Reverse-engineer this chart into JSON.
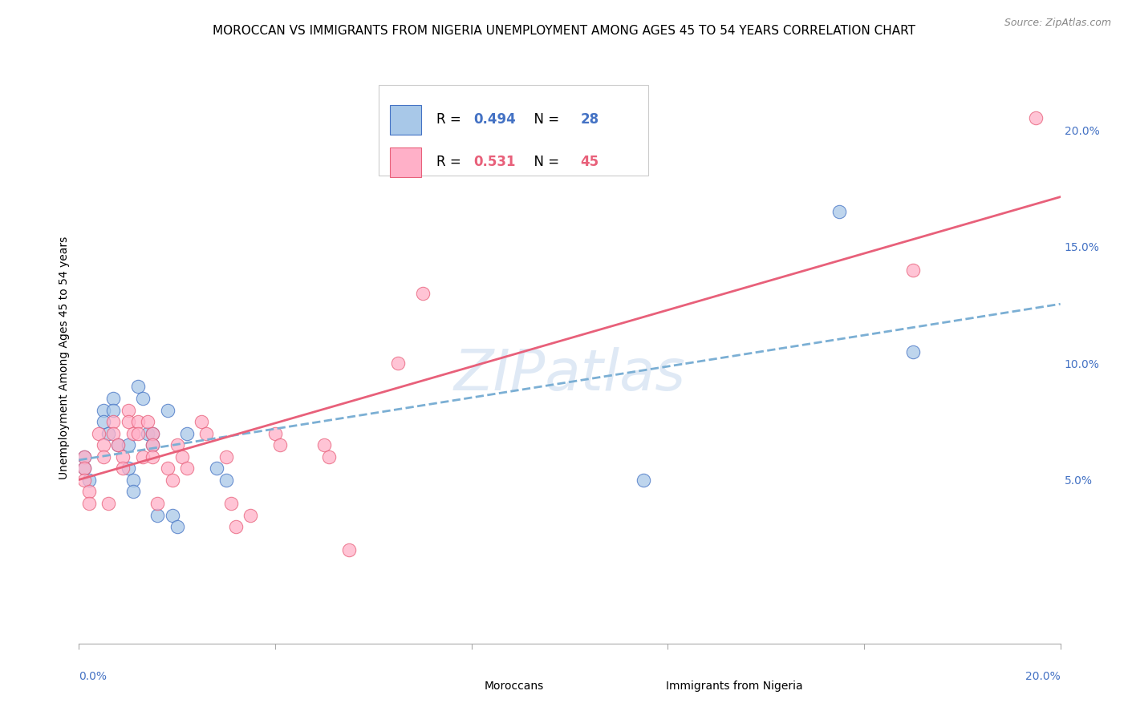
{
  "title": "MOROCCAN VS IMMIGRANTS FROM NIGERIA UNEMPLOYMENT AMONG AGES 45 TO 54 YEARS CORRELATION CHART",
  "source": "Source: ZipAtlas.com",
  "ylabel": "Unemployment Among Ages 45 to 54 years",
  "legend_label1": "Moroccans",
  "legend_label2": "Immigrants from Nigeria",
  "r1": "0.494",
  "n1": "28",
  "r2": "0.531",
  "n2": "45",
  "color_blue": "#A8C8E8",
  "color_pink": "#FFB0C8",
  "color_blue_line": "#4472C4",
  "color_pink_line": "#E8607A",
  "color_blue_text": "#4472C4",
  "color_pink_text": "#E8607A",
  "watermark": "ZIPatlas",
  "moroccans_x": [
    0.001,
    0.001,
    0.002,
    0.005,
    0.005,
    0.006,
    0.007,
    0.007,
    0.008,
    0.01,
    0.01,
    0.011,
    0.011,
    0.012,
    0.013,
    0.014,
    0.015,
    0.015,
    0.016,
    0.018,
    0.019,
    0.02,
    0.022,
    0.028,
    0.03,
    0.115,
    0.155,
    0.17
  ],
  "moroccans_y": [
    0.06,
    0.055,
    0.05,
    0.08,
    0.075,
    0.07,
    0.085,
    0.08,
    0.065,
    0.065,
    0.055,
    0.05,
    0.045,
    0.09,
    0.085,
    0.07,
    0.07,
    0.065,
    0.035,
    0.08,
    0.035,
    0.03,
    0.07,
    0.055,
    0.05,
    0.05,
    0.165,
    0.105
  ],
  "nigeria_x": [
    0.001,
    0.001,
    0.001,
    0.002,
    0.002,
    0.004,
    0.005,
    0.005,
    0.006,
    0.007,
    0.007,
    0.008,
    0.009,
    0.009,
    0.01,
    0.01,
    0.011,
    0.012,
    0.012,
    0.013,
    0.014,
    0.015,
    0.015,
    0.015,
    0.016,
    0.018,
    0.019,
    0.02,
    0.021,
    0.022,
    0.025,
    0.026,
    0.03,
    0.031,
    0.032,
    0.035,
    0.04,
    0.041,
    0.05,
    0.051,
    0.055,
    0.065,
    0.07,
    0.17,
    0.195
  ],
  "nigeria_y": [
    0.06,
    0.055,
    0.05,
    0.045,
    0.04,
    0.07,
    0.065,
    0.06,
    0.04,
    0.075,
    0.07,
    0.065,
    0.06,
    0.055,
    0.08,
    0.075,
    0.07,
    0.075,
    0.07,
    0.06,
    0.075,
    0.07,
    0.065,
    0.06,
    0.04,
    0.055,
    0.05,
    0.065,
    0.06,
    0.055,
    0.075,
    0.07,
    0.06,
    0.04,
    0.03,
    0.035,
    0.07,
    0.065,
    0.065,
    0.06,
    0.02,
    0.1,
    0.13,
    0.14,
    0.205
  ],
  "xlim": [
    0.0,
    0.2
  ],
  "ylim": [
    -0.02,
    0.225
  ],
  "yticks_right": [
    0.05,
    0.1,
    0.15,
    0.2
  ],
  "ytick_labels_right": [
    "5.0%",
    "10.0%",
    "15.0%",
    "20.0%"
  ],
  "grid_color": "#E0E0E0",
  "bg_color": "#FFFFFF",
  "title_fontsize": 11,
  "source_fontsize": 9,
  "axis_label_fontsize": 10,
  "tick_label_fontsize": 10,
  "legend_fontsize": 12
}
